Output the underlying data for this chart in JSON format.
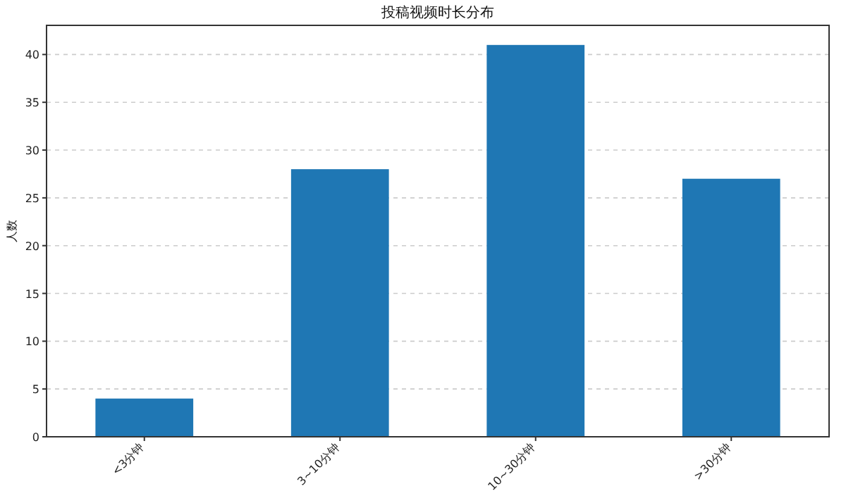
{
  "chart_data": {
    "type": "bar",
    "title": "投稿视频时长分布",
    "ylabel": "人数",
    "categories": [
      "<3分钟",
      "3~10分钟",
      "10~30分钟",
      ">30分钟"
    ],
    "values": [
      4,
      28,
      41,
      27
    ],
    "color": "#1f77b4",
    "ylim": [
      0,
      43.05
    ],
    "yticks": [
      0,
      5,
      10,
      15,
      20,
      25,
      30,
      35,
      40
    ],
    "grid": "y"
  }
}
